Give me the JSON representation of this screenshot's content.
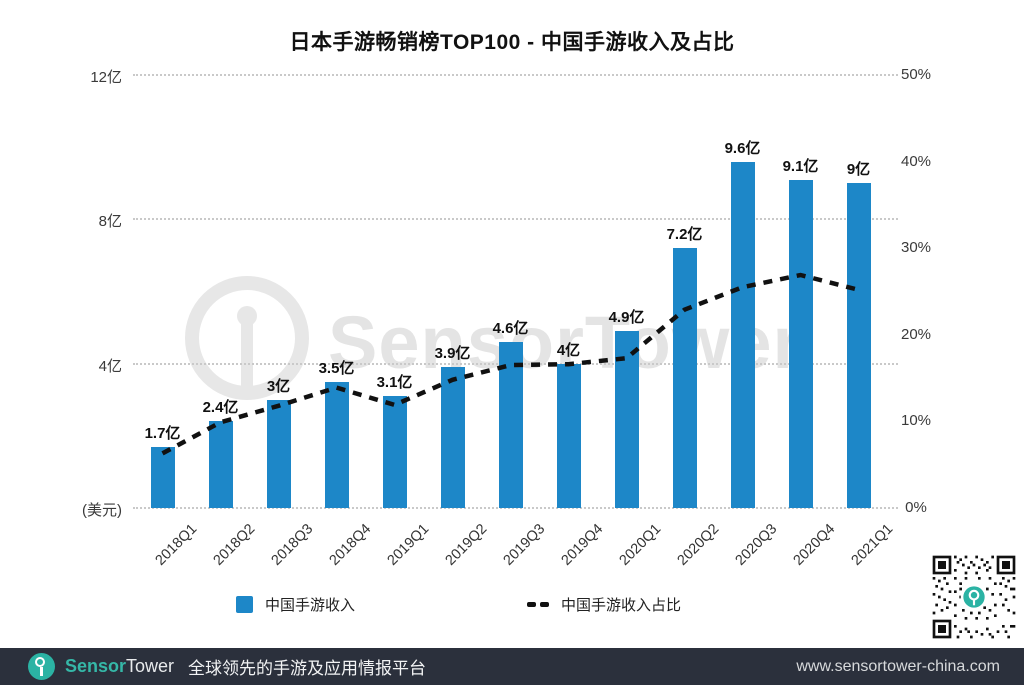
{
  "title": "日本手游畅销榜TOP100 - 中国手游收入及占比",
  "watermark_text": "SensorTower",
  "chart_data": {
    "type": "bar",
    "title": "日本手游畅销榜TOP100 - 中国手游收入及占比",
    "categories": [
      "2018Q1",
      "2018Q2",
      "2018Q3",
      "2018Q4",
      "2019Q1",
      "2019Q2",
      "2019Q3",
      "2019Q4",
      "2020Q1",
      "2020Q2",
      "2020Q3",
      "2020Q4",
      "2021Q1"
    ],
    "series": [
      {
        "name": "中国手游收入",
        "type": "bar",
        "unit": "亿美元",
        "color": "#1d87c8",
        "values": [
          1.7,
          2.4,
          3.0,
          3.5,
          3.1,
          3.9,
          4.6,
          4.0,
          4.9,
          7.2,
          9.6,
          9.1,
          9.0
        ],
        "labels": [
          "1.7亿",
          "2.4亿",
          "3亿",
          "3.5亿",
          "3.1亿",
          "3.9亿",
          "4.6亿",
          "4亿",
          "4.9亿",
          "7.2亿",
          "9.6亿",
          "9.1亿",
          "9亿"
        ]
      },
      {
        "name": "中国手游收入占比",
        "type": "line",
        "style": "dashed",
        "unit": "%",
        "color": "#111111",
        "values": [
          6.3,
          9.9,
          11.8,
          13.9,
          11.9,
          14.8,
          16.5,
          16.6,
          17.3,
          22.9,
          25.5,
          26.9,
          25.2
        ]
      }
    ],
    "left_axis": {
      "tick_values": [
        12,
        8,
        4
      ],
      "tick_labels": [
        "12亿",
        "8亿",
        "4亿"
      ],
      "unit_label": "(美元)",
      "max": 12,
      "min": 0
    },
    "right_axis": {
      "tick_values": [
        50,
        40,
        30,
        20,
        10,
        0
      ],
      "tick_labels": [
        "50%",
        "40%",
        "30%",
        "20%",
        "10%",
        "0%"
      ],
      "max": 50,
      "min": 0
    },
    "grid": "dotted-horizontal",
    "legend_position": "bottom"
  },
  "legend": {
    "bar_label": "中国手游收入",
    "line_label": "中国手游收入占比"
  },
  "footer": {
    "brand_sensor": "Sensor",
    "brand_tower": "Tower",
    "tagline": "全球领先的手游及应用情报平台",
    "url": "www.sensortower-china.com"
  },
  "colors": {
    "bar": "#1d87c8",
    "line": "#111111",
    "accent_teal": "#2bb3a4",
    "footer_bg": "#2b303c"
  }
}
